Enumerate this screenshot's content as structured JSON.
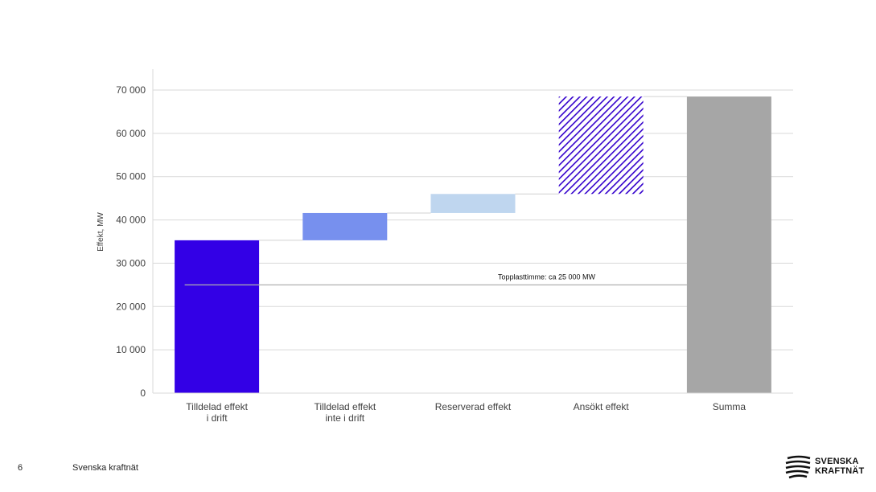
{
  "chart_data": {
    "type": "waterfall",
    "ylabel": "Effekt, MW",
    "ylim": [
      0,
      70000
    ],
    "y_ticks": [
      "0",
      "10 000",
      "20 000",
      "30 000",
      "40 000",
      "50 000",
      "60 000",
      "70 000"
    ],
    "y_tick_values": [
      0,
      10000,
      20000,
      30000,
      40000,
      50000,
      60000,
      70000
    ],
    "grid": true,
    "categories": [
      [
        "Tilldelad effekt",
        "i drift"
      ],
      [
        "Tilldelad effekt",
        "inte i drift"
      ],
      [
        "Reserverad effekt"
      ],
      [
        "Ansökt effekt"
      ],
      [
        "Summa"
      ]
    ],
    "bars": [
      {
        "start": 0,
        "end": 35300,
        "color": "#3300e6",
        "pattern": "solid"
      },
      {
        "start": 35300,
        "end": 41600,
        "color": "#7790ee",
        "pattern": "solid"
      },
      {
        "start": 41600,
        "end": 46000,
        "color": "#bfd6ef",
        "pattern": "solid"
      },
      {
        "start": 46000,
        "end": 68500,
        "color": "#3300cc",
        "pattern": "hatched"
      },
      {
        "start": 0,
        "end": 68500,
        "color": "#a6a6a6",
        "pattern": "solid"
      }
    ],
    "reference_line": {
      "value": 25000,
      "label": "Topplasttimme: ca 25 000 MW",
      "color": "#b0b0b0"
    }
  },
  "footer": {
    "page_number": "6",
    "organization": "Svenska kraftnät"
  },
  "logo": {
    "line1": "SVENSKA",
    "line2": "KRAFTNÄT"
  }
}
